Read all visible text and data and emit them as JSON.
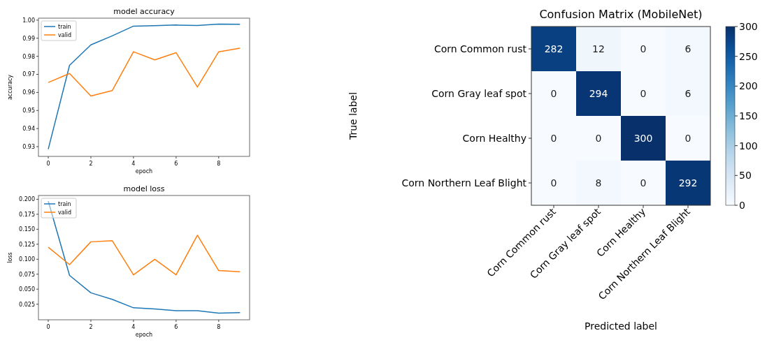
{
  "chart_data": [
    {
      "type": "line",
      "title": "model accuracy",
      "xlabel": "epoch",
      "ylabel": "accuracy",
      "x": [
        0,
        1,
        2,
        3,
        4,
        5,
        6,
        7,
        8,
        9
      ],
      "xlim": [
        -0.46,
        9.45
      ],
      "xticks": [
        0,
        2,
        4,
        6,
        8
      ],
      "ylim": [
        0.9246,
        1.0011
      ],
      "yticks": [
        {
          "value": 0.93,
          "label": "0.93"
        },
        {
          "value": 0.94,
          "label": "0.94"
        },
        {
          "value": 0.95,
          "label": "0.95"
        },
        {
          "value": 0.96,
          "label": "0.96"
        },
        {
          "value": 0.97,
          "label": "0.97"
        },
        {
          "value": 0.98,
          "label": "0.98"
        },
        {
          "value": 0.99,
          "label": "0.99"
        },
        {
          "value": 1,
          "label": "1.00"
        }
      ],
      "legend": "top left",
      "series": [
        {
          "name": "train",
          "color": "#1f77b4",
          "values": [
            0.9286,
            0.975,
            0.9863,
            0.9913,
            0.9967,
            0.9969,
            0.9973,
            0.997,
            0.9978,
            0.9977
          ]
        },
        {
          "name": "valid",
          "color": "#ff7f0e",
          "values": [
            0.9655,
            0.9705,
            0.958,
            0.961,
            0.9825,
            0.978,
            0.982,
            0.963,
            0.9825,
            0.9845
          ]
        }
      ]
    },
    {
      "type": "line",
      "title": "model loss",
      "xlabel": "epoch",
      "ylabel": "loss",
      "x": [
        0,
        1,
        2,
        3,
        4,
        5,
        6,
        7,
        8,
        9
      ],
      "xlim": [
        -0.46,
        9.45
      ],
      "xticks": [
        0,
        2,
        4,
        6,
        8
      ],
      "ylim": [
        -0.001,
        0.2063
      ],
      "yticks": [
        {
          "value": 0.025,
          "label": "0.025"
        },
        {
          "value": 0.05,
          "label": "0.050"
        },
        {
          "value": 0.075,
          "label": "0.075"
        },
        {
          "value": 0.1,
          "label": "0.100"
        },
        {
          "value": 0.125,
          "label": "0.125"
        },
        {
          "value": 0.15,
          "label": "0.150"
        },
        {
          "value": 0.175,
          "label": "0.175"
        },
        {
          "value": 0.2,
          "label": "0.200"
        }
      ],
      "legend": "top left",
      "series": [
        {
          "name": "train",
          "color": "#1f77b4",
          "values": [
            0.197,
            0.073,
            0.044,
            0.033,
            0.019,
            0.017,
            0.014,
            0.014,
            0.01,
            0.011
          ]
        },
        {
          "name": "valid",
          "color": "#ff7f0e",
          "values": [
            0.12,
            0.091,
            0.129,
            0.131,
            0.074,
            0.1,
            0.074,
            0.14,
            0.081,
            0.079
          ]
        }
      ]
    },
    {
      "type": "heatmap",
      "title": "Confusion Matrix (MobileNet)",
      "xlabel": "Predicted label",
      "ylabel": "True label",
      "categories": [
        "Corn Common rust",
        "Corn Gray leaf spot",
        "Corn Healthy",
        "Corn Northern Leaf Blight"
      ],
      "y_categories": [
        "Corn Common rust",
        "Corn Gray leaf spot",
        "Corn Healthy",
        "Corn Northern Leaf Blight"
      ],
      "cells": [
        [
          282,
          12,
          0,
          6
        ],
        [
          0,
          294,
          0,
          6
        ],
        [
          0,
          0,
          300,
          0
        ],
        [
          0,
          8,
          0,
          292
        ]
      ],
      "clim": [
        0,
        300
      ],
      "cticks": [
        0,
        50,
        100,
        150,
        200,
        250,
        300
      ],
      "data_labels": true
    }
  ]
}
